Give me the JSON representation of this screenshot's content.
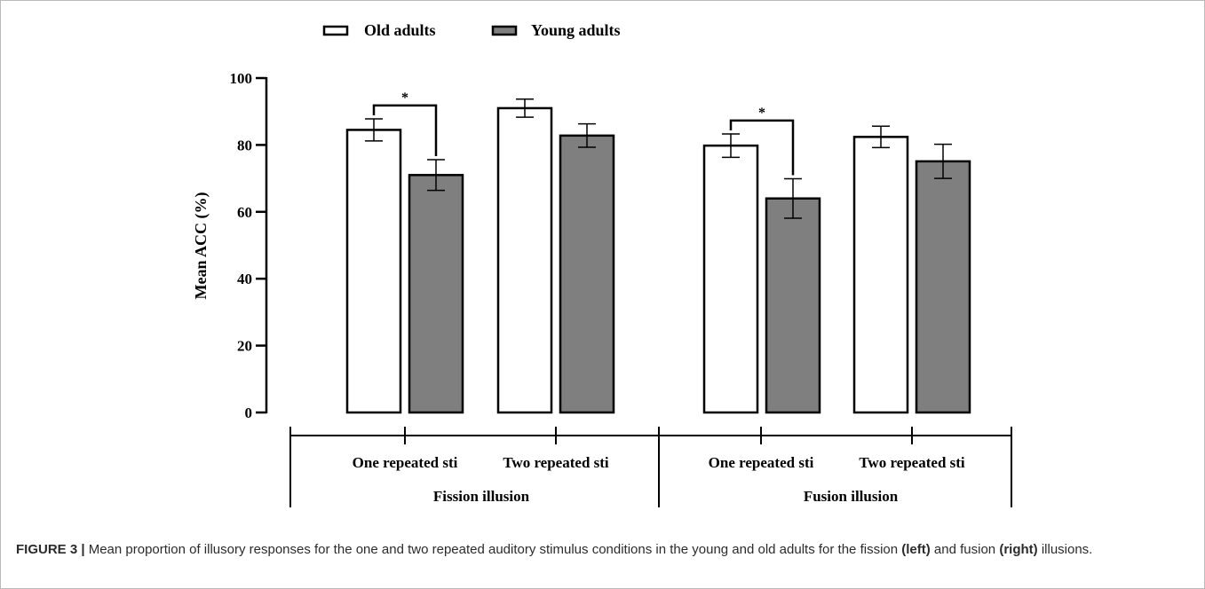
{
  "chart_data": {
    "type": "bar",
    "ylabel": "Mean ACC (%)",
    "ylim": [
      0,
      100
    ],
    "yticks": [
      "0",
      "20",
      "40",
      "60",
      "80",
      "100"
    ],
    "legend": {
      "placement": "top",
      "entries": [
        "Old adults",
        "Young adults"
      ]
    },
    "colors": {
      "old": "#ffffff",
      "young": "#7f7f7f",
      "stroke": "#000000"
    },
    "groups": [
      {
        "label": "Fission illusion",
        "conditions": [
          {
            "label": "One repeated sti",
            "old": 84.5,
            "old_err": 3.3,
            "young": 71,
            "young_err": 4.6,
            "significance": "*"
          },
          {
            "label": "Two repeated sti",
            "old": 91,
            "old_err": 2.7,
            "young": 82.8,
            "young_err": 3.5,
            "significance": ""
          }
        ]
      },
      {
        "label": "Fusion illusion",
        "conditions": [
          {
            "label": "One repeated sti",
            "old": 79.8,
            "old_err": 3.5,
            "young": 64,
            "young_err": 5.9,
            "significance": "*"
          },
          {
            "label": "Two repeated sti",
            "old": 82.4,
            "old_err": 3.2,
            "young": 75.1,
            "young_err": 5.1,
            "significance": ""
          }
        ]
      }
    ]
  },
  "caption": {
    "figure_label": "FIGURE 3 |",
    "text_a": " Mean proportion of illusory responses for the one and two repeated auditory stimulus conditions in the young and old adults for the fission ",
    "left_word": "(left)",
    "text_b": " and fusion ",
    "right_word": "(right)",
    "text_c": " illusions."
  }
}
